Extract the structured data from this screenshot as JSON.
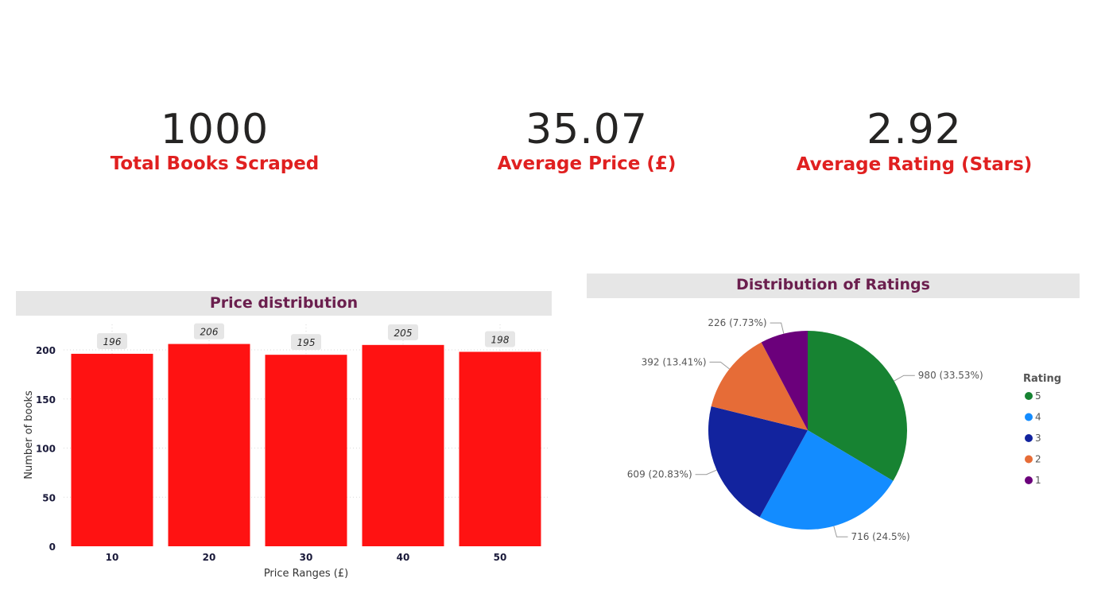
{
  "kpis": [
    {
      "value": "1000",
      "label": "Total Books Scraped"
    },
    {
      "value": "35.07",
      "label": "Average Price (£)"
    },
    {
      "value": "2.92",
      "label": "Average Rating (Stars)"
    }
  ],
  "colors": {
    "bar": "#ff1212",
    "kpi_label": "#e02020",
    "title_text": "#6b1f4e",
    "title_bg": "#e6e6e6"
  },
  "chart_data": [
    {
      "type": "bar",
      "title": "Price distribution",
      "xlabel": "Price Ranges (£)",
      "ylabel": "Number of books",
      "categories": [
        "10",
        "20",
        "30",
        "40",
        "50"
      ],
      "values": [
        196,
        206,
        195,
        205,
        198
      ],
      "yticks": [
        0,
        50,
        100,
        150,
        200
      ],
      "ylim": [
        0,
        220
      ],
      "grid": true
    },
    {
      "type": "pie",
      "title": "Distribution of Ratings",
      "legend_title": "Rating",
      "legend_position": "right",
      "slices": [
        {
          "label": "5",
          "value": 980,
          "display": "980 (33.53%)",
          "color": "#178332"
        },
        {
          "label": "4",
          "value": 716,
          "display": "716 (24.5%)",
          "color": "#138cff"
        },
        {
          "label": "3",
          "value": 609,
          "display": "609 (20.83%)",
          "color": "#12239e"
        },
        {
          "label": "2",
          "value": 392,
          "display": "392 (13.41%)",
          "color": "#e66c37"
        },
        {
          "label": "1",
          "value": 226,
          "display": "226 (7.73%)",
          "color": "#6b007b"
        }
      ]
    }
  ]
}
